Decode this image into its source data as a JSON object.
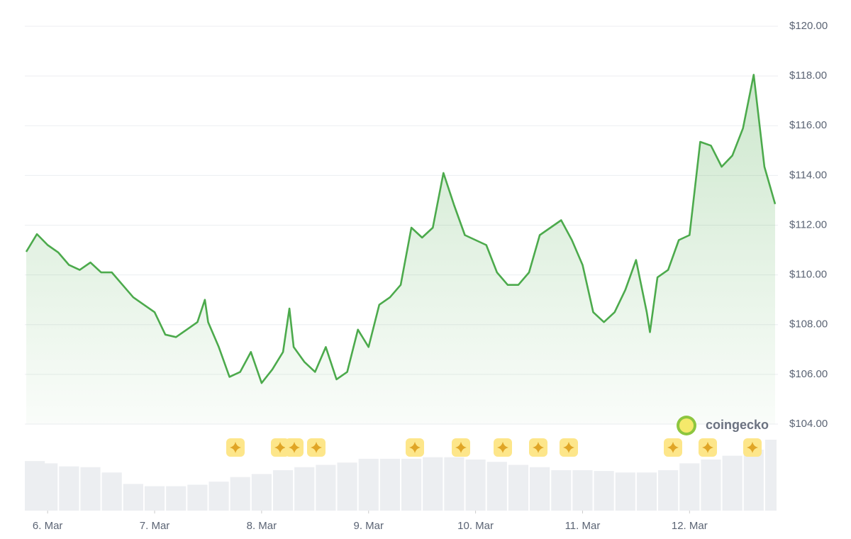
{
  "chart_data": {
    "type": "line",
    "color": "#4caa4c",
    "grid": true,
    "xlim": [
      5.8,
      12.8
    ],
    "ylim": [
      104,
      120
    ],
    "xticks": [
      {
        "value": 6,
        "label": "6. Mar"
      },
      {
        "value": 7,
        "label": "7. Mar"
      },
      {
        "value": 8,
        "label": "8. Mar"
      },
      {
        "value": 9,
        "label": "9. Mar"
      },
      {
        "value": 10,
        "label": "10. Mar"
      },
      {
        "value": 11,
        "label": "11. Mar"
      },
      {
        "value": 12,
        "label": "12. Mar"
      }
    ],
    "yticks": [
      {
        "value": 104,
        "label": "$104.00"
      },
      {
        "value": 106,
        "label": "$106.00"
      },
      {
        "value": 108,
        "label": "$108.00"
      },
      {
        "value": 110,
        "label": "$110.00"
      },
      {
        "value": 112,
        "label": "$112.00"
      },
      {
        "value": 114,
        "label": "$114.00"
      },
      {
        "value": 116,
        "label": "$116.00"
      },
      {
        "value": 118,
        "label": "$118.00"
      },
      {
        "value": 120,
        "label": "$120.00"
      }
    ],
    "x": [
      5.8,
      5.9,
      6.0,
      6.1,
      6.2,
      6.3,
      6.4,
      6.5,
      6.6,
      6.7,
      6.8,
      6.9,
      7.0,
      7.1,
      7.2,
      7.3,
      7.4,
      7.47,
      7.5,
      7.6,
      7.7,
      7.8,
      7.9,
      8.0,
      8.1,
      8.2,
      8.26,
      8.3,
      8.4,
      8.5,
      8.6,
      8.7,
      8.8,
      8.9,
      9.0,
      9.1,
      9.2,
      9.3,
      9.4,
      9.5,
      9.6,
      9.7,
      9.8,
      9.9,
      10.0,
      10.1,
      10.2,
      10.3,
      10.4,
      10.5,
      10.6,
      10.7,
      10.8,
      10.9,
      11.0,
      11.1,
      11.2,
      11.3,
      11.4,
      11.5,
      11.6,
      11.63,
      11.7,
      11.8,
      11.9,
      12.0,
      12.1,
      12.2,
      12.3,
      12.4,
      12.5,
      12.6,
      12.7,
      12.8
    ],
    "values": [
      110.93,
      111.64,
      111.2,
      110.9,
      110.4,
      110.2,
      110.5,
      110.1,
      110.1,
      109.6,
      109.1,
      108.8,
      108.5,
      107.6,
      107.5,
      107.8,
      108.1,
      109.0,
      108.1,
      107.1,
      105.9,
      106.1,
      106.9,
      105.65,
      106.2,
      106.9,
      108.65,
      107.1,
      106.5,
      106.1,
      107.1,
      105.8,
      106.1,
      107.8,
      107.1,
      108.8,
      109.1,
      109.6,
      111.9,
      111.5,
      111.9,
      114.1,
      112.8,
      111.6,
      111.4,
      111.2,
      110.1,
      109.6,
      109.6,
      110.1,
      111.6,
      111.9,
      112.2,
      111.4,
      110.4,
      108.5,
      108.1,
      108.5,
      109.4,
      110.6,
      108.5,
      107.7,
      109.9,
      110.2,
      111.4,
      111.6,
      115.35,
      115.2,
      114.35,
      114.8,
      115.9,
      118.05,
      114.35,
      112.85
    ],
    "volume": {
      "x": [
        5.8,
        6.0,
        6.2,
        6.4,
        6.6,
        6.8,
        7.0,
        7.2,
        7.4,
        7.6,
        7.8,
        8.0,
        8.2,
        8.4,
        8.6,
        8.8,
        9.0,
        9.2,
        9.4,
        9.6,
        9.8,
        10.0,
        10.2,
        10.4,
        10.6,
        10.8,
        11.0,
        11.2,
        11.4,
        11.6,
        11.8,
        12.0,
        12.2,
        12.4,
        12.6,
        12.8
      ],
      "values": [
        65,
        62,
        58,
        57,
        50,
        35,
        32,
        32,
        34,
        38,
        44,
        48,
        53,
        57,
        60,
        63,
        68,
        68,
        68,
        70,
        70,
        67,
        64,
        60,
        57,
        53,
        53,
        52,
        50,
        50,
        53,
        62,
        67,
        72,
        80,
        93
      ]
    },
    "watermark": "coingecko"
  }
}
